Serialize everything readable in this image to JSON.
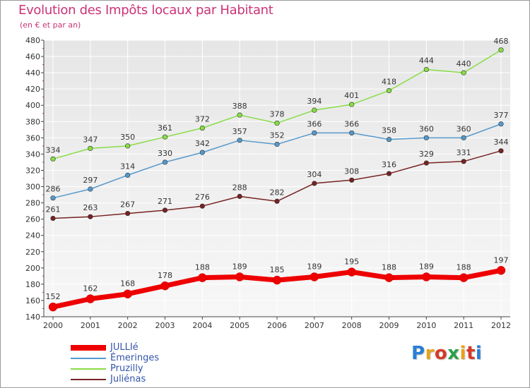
{
  "title": "Evolution des Impôts locaux par Habitant",
  "subtitle": "(en € et par an)",
  "logo_text": "Proxiti",
  "colors": {
    "title": "#cc3377",
    "axis": "#444444",
    "grid": "#ffffff",
    "legend_text": "#3355aa"
  },
  "chart_data": {
    "type": "line",
    "title": "Evolution des Impôts locaux par Habitant",
    "subtitle": "(en € et par an)",
    "x": [
      "2000",
      "2001",
      "2002",
      "2003",
      "2004",
      "2005",
      "2006",
      "2007",
      "2008",
      "2009",
      "2010",
      "2011",
      "2012"
    ],
    "ylim": [
      140,
      480
    ],
    "yticks": [
      140,
      160,
      180,
      200,
      220,
      240,
      260,
      280,
      300,
      320,
      340,
      360,
      380,
      400,
      420,
      440,
      460,
      480
    ],
    "legend_position": "bottom-left",
    "series": [
      {
        "name": "JULLIé",
        "color": "#ee0000",
        "values": [
          152,
          162,
          168,
          178,
          188,
          189,
          185,
          189,
          195,
          188,
          189,
          188,
          197
        ]
      },
      {
        "name": "Émeringes",
        "color": "#5599cc",
        "values": [
          286,
          297,
          314,
          330,
          342,
          357,
          352,
          366,
          366,
          358,
          360,
          360,
          377
        ]
      },
      {
        "name": "Pruzilly",
        "color": "#88dd44",
        "values": [
          334,
          347,
          350,
          361,
          372,
          388,
          378,
          394,
          401,
          418,
          444,
          440,
          468
        ]
      },
      {
        "name": "Juliénas",
        "color": "#772222",
        "values": [
          261,
          263,
          267,
          271,
          276,
          288,
          282,
          304,
          308,
          316,
          329,
          331,
          344
        ]
      }
    ]
  }
}
